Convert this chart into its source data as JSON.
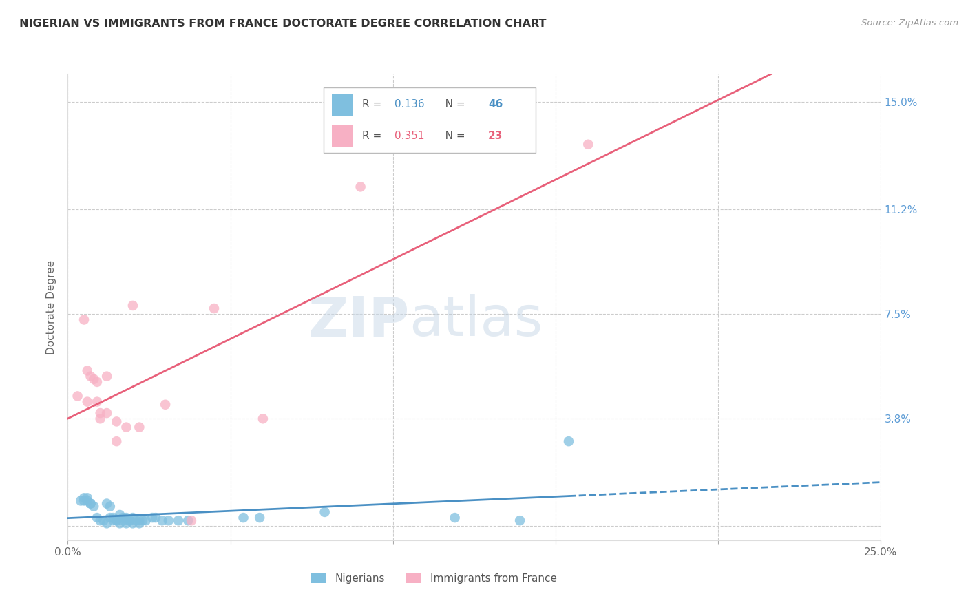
{
  "title": "NIGERIAN VS IMMIGRANTS FROM FRANCE DOCTORATE DEGREE CORRELATION CHART",
  "source": "Source: ZipAtlas.com",
  "ylabel": "Doctorate Degree",
  "xlim": [
    0.0,
    0.25
  ],
  "ylim": [
    -0.005,
    0.16
  ],
  "xtick_positions": [
    0.0,
    0.05,
    0.1,
    0.15,
    0.2,
    0.25
  ],
  "xticklabels": [
    "0.0%",
    "",
    "",
    "",
    "",
    "25.0%"
  ],
  "ytick_positions": [
    0.0,
    0.038,
    0.075,
    0.112,
    0.15
  ],
  "ytick_labels": [
    "",
    "3.8%",
    "7.5%",
    "11.2%",
    "15.0%"
  ],
  "blue_color": "#7fbfdf",
  "pink_color": "#f7b0c4",
  "blue_line_color": "#4a90c4",
  "pink_line_color": "#e8607a",
  "grid_color": "#cccccc",
  "background_color": "#ffffff",
  "blue_scatter": [
    [
      0.004,
      0.009
    ],
    [
      0.005,
      0.01
    ],
    [
      0.005,
      0.009
    ],
    [
      0.006,
      0.01
    ],
    [
      0.006,
      0.009
    ],
    [
      0.007,
      0.008
    ],
    [
      0.007,
      0.008
    ],
    [
      0.008,
      0.007
    ],
    [
      0.009,
      0.003
    ],
    [
      0.01,
      0.002
    ],
    [
      0.011,
      0.002
    ],
    [
      0.012,
      0.001
    ],
    [
      0.012,
      0.008
    ],
    [
      0.013,
      0.007
    ],
    [
      0.013,
      0.003
    ],
    [
      0.014,
      0.002
    ],
    [
      0.014,
      0.003
    ],
    [
      0.015,
      0.002
    ],
    [
      0.015,
      0.002
    ],
    [
      0.016,
      0.001
    ],
    [
      0.016,
      0.004
    ],
    [
      0.017,
      0.003
    ],
    [
      0.017,
      0.002
    ],
    [
      0.018,
      0.001
    ],
    [
      0.018,
      0.003
    ],
    [
      0.019,
      0.002
    ],
    [
      0.019,
      0.002
    ],
    [
      0.02,
      0.001
    ],
    [
      0.02,
      0.003
    ],
    [
      0.021,
      0.002
    ],
    [
      0.022,
      0.002
    ],
    [
      0.022,
      0.001
    ],
    [
      0.023,
      0.002
    ],
    [
      0.024,
      0.002
    ],
    [
      0.026,
      0.003
    ],
    [
      0.027,
      0.003
    ],
    [
      0.029,
      0.002
    ],
    [
      0.031,
      0.002
    ],
    [
      0.034,
      0.002
    ],
    [
      0.037,
      0.002
    ],
    [
      0.054,
      0.003
    ],
    [
      0.059,
      0.003
    ],
    [
      0.079,
      0.005
    ],
    [
      0.139,
      0.002
    ],
    [
      0.154,
      0.03
    ],
    [
      0.119,
      0.003
    ]
  ],
  "pink_scatter": [
    [
      0.003,
      0.046
    ],
    [
      0.005,
      0.073
    ],
    [
      0.006,
      0.055
    ],
    [
      0.006,
      0.044
    ],
    [
      0.007,
      0.053
    ],
    [
      0.008,
      0.052
    ],
    [
      0.009,
      0.051
    ],
    [
      0.009,
      0.044
    ],
    [
      0.01,
      0.04
    ],
    [
      0.01,
      0.038
    ],
    [
      0.012,
      0.053
    ],
    [
      0.012,
      0.04
    ],
    [
      0.015,
      0.037
    ],
    [
      0.015,
      0.03
    ],
    [
      0.018,
      0.035
    ],
    [
      0.02,
      0.078
    ],
    [
      0.022,
      0.035
    ],
    [
      0.03,
      0.043
    ],
    [
      0.038,
      0.002
    ],
    [
      0.045,
      0.077
    ],
    [
      0.06,
      0.038
    ],
    [
      0.09,
      0.12
    ],
    [
      0.16,
      0.135
    ]
  ],
  "watermark_zip": "ZIP",
  "watermark_atlas": "atlas",
  "r_blue": "0.136",
  "n_blue": "46",
  "r_pink": "0.351",
  "n_pink": "23",
  "legend_blue_label": "Nigerians",
  "legend_pink_label": "Immigrants from France"
}
